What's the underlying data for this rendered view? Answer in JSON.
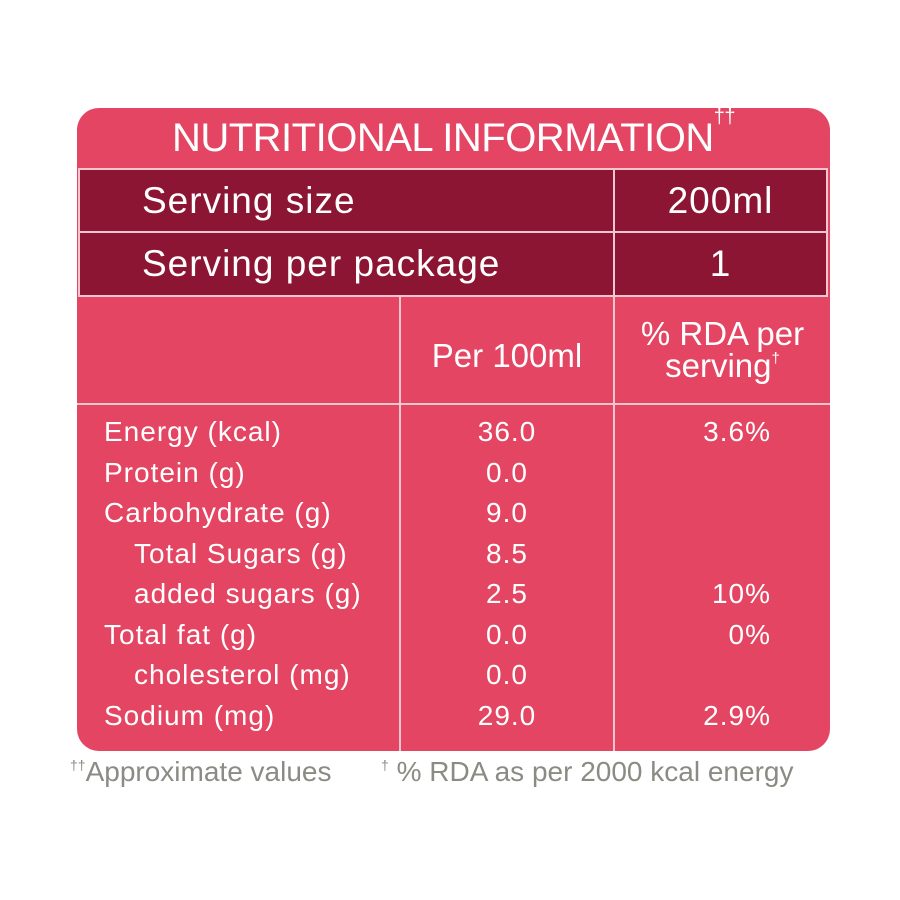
{
  "title": "NUTRITIONAL INFORMATION",
  "title_mark": "††",
  "serving": {
    "size_label": "Serving size",
    "size_value": "200ml",
    "per_package_label": "Serving per package",
    "per_package_value": "1"
  },
  "columns": {
    "per100": "Per 100ml",
    "rda_line1": "% RDA per",
    "rda_line2": "serving",
    "rda_mark": "†"
  },
  "rows": [
    {
      "name": "Energy (kcal)",
      "per100": "36.0",
      "rda": "3.6%"
    },
    {
      "name": "Protein (g)",
      "per100": "0.0",
      "rda": ""
    },
    {
      "name": "Carbohydrate (g)",
      "per100": "9.0",
      "rda": ""
    },
    {
      "name": "Total Sugars (g)",
      "per100": "8.5",
      "rda": ""
    },
    {
      "name": "added sugars (g)",
      "per100": "2.5",
      "rda": "10%"
    },
    {
      "name": "Total fat (g)",
      "per100": "0.0",
      "rda": "0%"
    },
    {
      "name": "cholesterol (mg)",
      "per100": "0.0",
      "rda": ""
    },
    {
      "name": "Sodium (mg)",
      "per100": "29.0",
      "rda": "2.9%"
    }
  ],
  "footnotes": {
    "approx_mark": "††",
    "approx": "Approximate values",
    "rda_mark": "†",
    "rda": "% RDA as per 2000 kcal energy"
  },
  "colors": {
    "panel": "#e34562",
    "dark_band": "#8b1532",
    "lines": "#f2c6cf",
    "footnote_text": "#8b8b84"
  }
}
